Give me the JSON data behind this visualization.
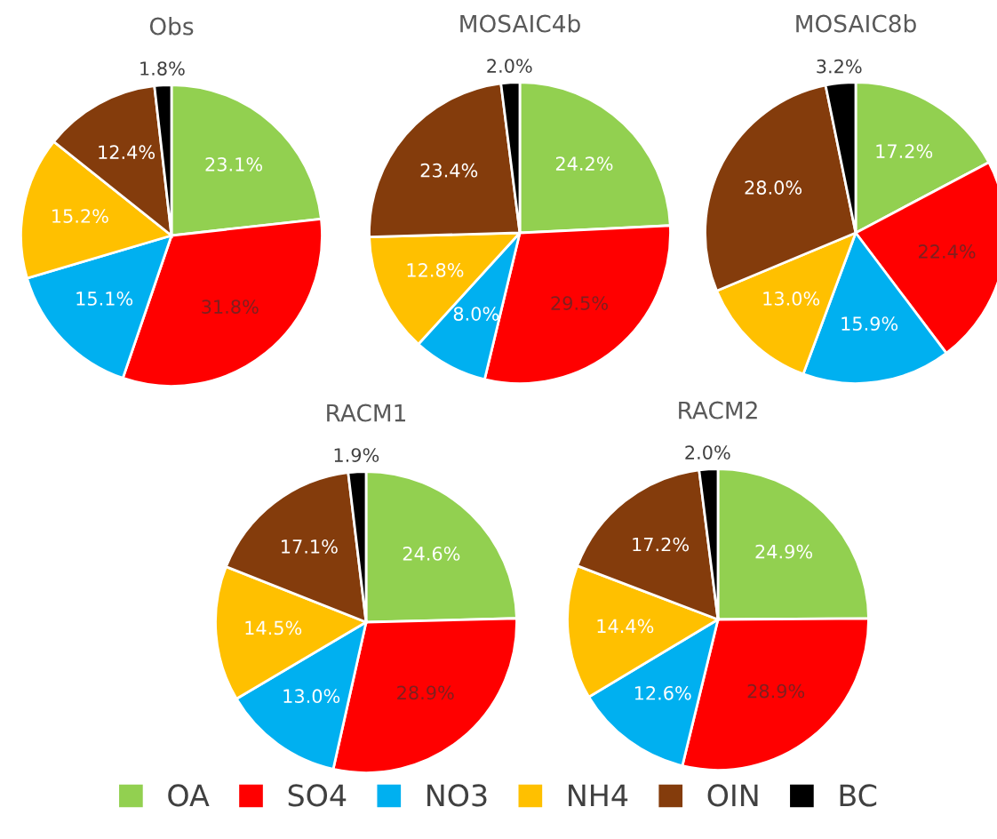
{
  "chart_data": [
    {
      "type": "pie",
      "title": "Obs",
      "categories": [
        "OA",
        "SO4",
        "NO3",
        "NH4",
        "OIN",
        "BC"
      ],
      "values": [
        23.1,
        31.8,
        15.1,
        15.2,
        12.4,
        1.8
      ],
      "value_labels": [
        "23.1%",
        "31.8%",
        "15.1%",
        "15.2%",
        "12.4%",
        "1.8%"
      ],
      "colors": [
        "#92d050",
        "#ff0000",
        "#00b0f0",
        "#ffc000",
        "#843c0c",
        "#000000"
      ],
      "legend": "bottom"
    },
    {
      "type": "pie",
      "title": "MOSAIC4b",
      "categories": [
        null,
        null,
        null,
        null,
        null,
        null
      ],
      "values": [
        24.2,
        29.5,
        8.0,
        12.8,
        23.4,
        2.0
      ],
      "value_labels": [
        "24.2%",
        "29.5%",
        "8.0%",
        "12.8%",
        "23.4%",
        "2.0%"
      ],
      "colors": [
        "#92d050",
        "#ff0000",
        "#00b0f0",
        "#ffc000",
        "#843c0c",
        "#000000"
      ]
    },
    {
      "type": "pie",
      "title": "MOSAIC8b",
      "categories": [
        null,
        null,
        null,
        null,
        null,
        null
      ],
      "values": [
        17.2,
        22.4,
        15.9,
        13.0,
        28.0,
        3.2
      ],
      "value_labels": [
        "17.2%",
        "22.4%",
        "15.9%",
        "13.0%",
        "28.0%",
        "3.2%"
      ],
      "colors": [
        "#92d050",
        "#ff0000",
        "#00b0f0",
        "#ffc000",
        "#843c0c",
        "#000000"
      ]
    },
    {
      "type": "pie",
      "title": "RACM1",
      "categories": [
        null,
        null,
        null,
        null,
        null,
        null
      ],
      "values": [
        24.6,
        28.9,
        13.0,
        14.5,
        17.1,
        1.9
      ],
      "value_labels": [
        "24.6%",
        "28.9%",
        "13.0%",
        "14.5%",
        "17.1%",
        "1.9%"
      ],
      "colors": [
        "#92d050",
        "#ff0000",
        "#00b0f0",
        "#ffc000",
        "#843c0c",
        "#000000"
      ]
    },
    {
      "type": "pie",
      "title": "RACM2",
      "categories": [
        null,
        null,
        null,
        null,
        null,
        null
      ],
      "values": [
        24.9,
        28.9,
        12.6,
        14.4,
        17.2,
        2.0
      ],
      "value_labels": [
        "24.9%",
        "28.9%",
        "12.6%",
        "14.4%",
        "17.2%",
        "2.0%"
      ],
      "colors": [
        "#92d050",
        "#ff0000",
        "#00b0f0",
        "#ffc000",
        "#843c0c",
        "#000000"
      ]
    }
  ]
}
